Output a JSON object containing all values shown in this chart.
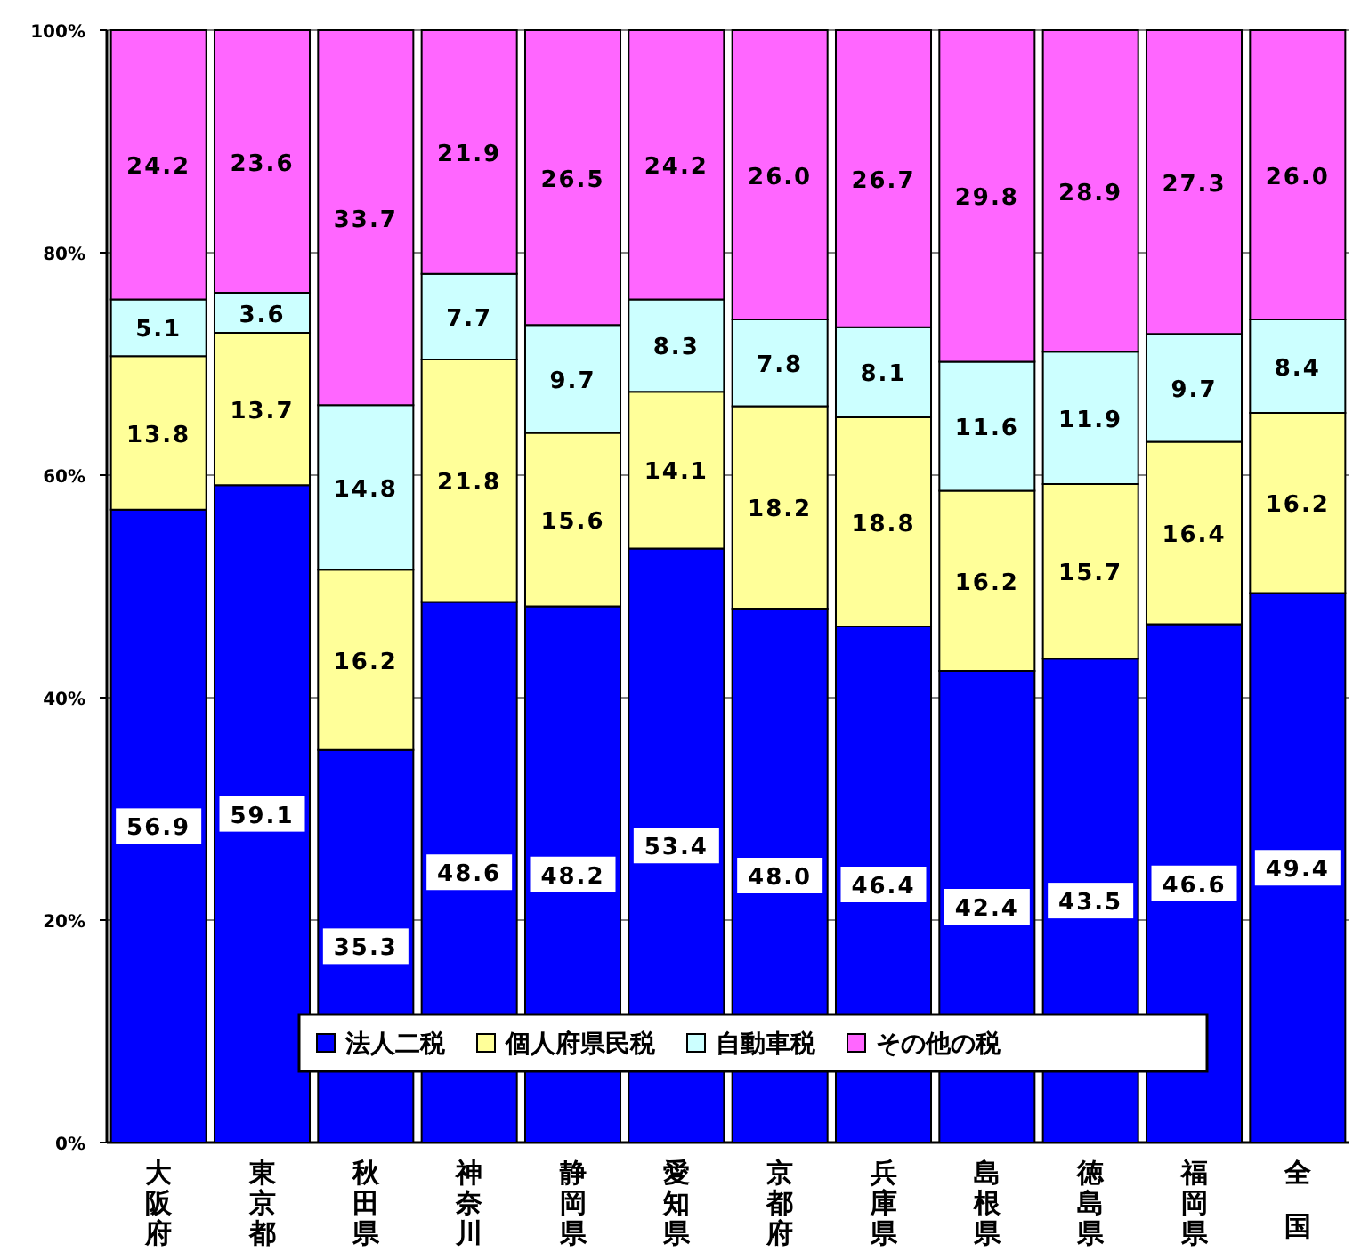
{
  "chart_data": {
    "type": "bar",
    "stacked": true,
    "grid": "y",
    "legend": "bottom",
    "categories": [
      "大阪府",
      "東京都",
      "秋田県",
      "神奈川",
      "静岡県",
      "愛知県",
      "京都府",
      "兵庫県",
      "島根県",
      "徳島県",
      "福岡県",
      "全国"
    ],
    "series": [
      {
        "name": "法人二税",
        "color": "#0000ff",
        "values": [
          56.9,
          59.1,
          35.3,
          48.6,
          48.2,
          53.4,
          48.0,
          46.4,
          42.4,
          43.5,
          46.6,
          49.4
        ],
        "value_labels": [
          "56.9",
          "59.1",
          "35.3",
          "48.6",
          "48.2",
          "53.4",
          "48.0",
          "46.4",
          "42.4",
          "43.5",
          "46.6",
          "49.4"
        ]
      },
      {
        "name": "個人府県民税",
        "color": "#ffff99",
        "values": [
          13.8,
          13.7,
          16.2,
          21.8,
          15.6,
          14.1,
          18.2,
          18.8,
          16.2,
          15.7,
          16.4,
          16.2
        ],
        "value_labels": [
          "13.8",
          "13.7",
          "16.2",
          "21.8",
          "15.6",
          "14.1",
          "18.2",
          "18.8",
          "16.2",
          "15.7",
          "16.4",
          "16.2"
        ]
      },
      {
        "name": "自動車税",
        "color": "#ccffff",
        "values": [
          5.1,
          3.6,
          14.8,
          7.7,
          9.7,
          8.3,
          7.8,
          8.1,
          11.6,
          11.9,
          9.7,
          8.4
        ],
        "value_labels": [
          "5.1",
          "3.6",
          "14.8",
          "7.7",
          "9.7",
          "8.3",
          "7.8",
          "8.1",
          "11.6",
          "11.9",
          "9.7",
          "8.4"
        ]
      },
      {
        "name": "その他の税",
        "color": "#ff66ff",
        "values": [
          24.2,
          23.6,
          33.7,
          21.9,
          26.5,
          24.2,
          26.0,
          26.7,
          29.8,
          28.9,
          27.3,
          26.0
        ],
        "value_labels": [
          "24.2",
          "23.6",
          "33.7",
          "21.9",
          "26.5",
          "24.2",
          "26.0",
          "26.7",
          "29.8",
          "28.9",
          "27.3",
          "26.0"
        ]
      }
    ],
    "ylim": [
      0,
      100
    ],
    "yticks": [
      {
        "value": 0,
        "label": "0%"
      },
      {
        "value": 20,
        "label": "20%"
      },
      {
        "value": 40,
        "label": "40%"
      },
      {
        "value": 60,
        "label": "60%"
      },
      {
        "value": 80,
        "label": "80%"
      },
      {
        "value": 100,
        "label": "100%"
      }
    ]
  }
}
